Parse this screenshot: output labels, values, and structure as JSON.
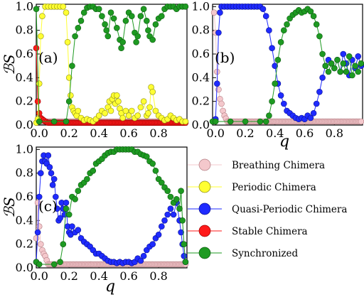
{
  "chart_data": [
    {
      "panel_label": "(a)",
      "type": "line",
      "xlabel": "",
      "ylabel": "ℬS",
      "xlim": [
        -0.02,
        0.99
      ],
      "ylim": [
        0,
        1.02
      ],
      "xticks": [
        "0.0",
        "0.2",
        "0.4",
        "0.6",
        "0.8"
      ],
      "yticks": [
        "0.0",
        "0.2",
        "0.4",
        "0.6",
        "0.8",
        "1.0"
      ],
      "series": [
        {
          "name": "Breathing Chimera",
          "x": [
            0.0,
            0.5,
            0.98
          ],
          "y": [
            0.03,
            0.03,
            0.03
          ]
        },
        {
          "name": "Periodic Chimera",
          "x": [
            -0.02,
            -0.01,
            0.0,
            0.01,
            0.02,
            0.04,
            0.06,
            0.08,
            0.1,
            0.12,
            0.14,
            0.16,
            0.18,
            0.19,
            0.2,
            0.21,
            0.22,
            0.23,
            0.24,
            0.25,
            0.26,
            0.28,
            0.3,
            0.32,
            0.34,
            0.36,
            0.38,
            0.4,
            0.42,
            0.44,
            0.46,
            0.47,
            0.48,
            0.49,
            0.5,
            0.51,
            0.52,
            0.53,
            0.54,
            0.55,
            0.56,
            0.58,
            0.6,
            0.62,
            0.64,
            0.66,
            0.68,
            0.7,
            0.72,
            0.73,
            0.74,
            0.75,
            0.76,
            0.78,
            0.8,
            0.82,
            0.84,
            0.86,
            0.88,
            0.9,
            0.92,
            0.94,
            0.96,
            0.98
          ],
          "y": [
            0.02,
            0.05,
            0.35,
            0.75,
            0.92,
            1.0,
            1.0,
            1.0,
            1.0,
            1.0,
            1.0,
            1.0,
            0.95,
            0.7,
            0.4,
            0.25,
            0.15,
            0.12,
            0.1,
            0.08,
            0.12,
            0.06,
            0.04,
            0.05,
            0.04,
            0.03,
            0.05,
            0.08,
            0.12,
            0.1,
            0.15,
            0.2,
            0.12,
            0.22,
            0.25,
            0.18,
            0.25,
            0.2,
            0.14,
            0.1,
            0.06,
            0.12,
            0.08,
            0.12,
            0.06,
            0.08,
            0.15,
            0.2,
            0.08,
            0.1,
            0.15,
            0.32,
            0.28,
            0.12,
            0.08,
            0.06,
            0.04,
            0.05,
            0.08,
            0.06,
            0.04,
            0.05,
            0.03,
            0.03
          ]
        },
        {
          "name": "Stable Chimera",
          "x": [
            -0.02,
            -0.01,
            0.0,
            0.01,
            0.02,
            0.03,
            0.04,
            0.06,
            0.08,
            0.1,
            0.2,
            0.3,
            0.4,
            0.5,
            0.6,
            0.7,
            0.8,
            0.9,
            0.98
          ],
          "y": [
            0.65,
            0.2,
            0.1,
            0.06,
            0.05,
            0.04,
            0.03,
            0.02,
            0.02,
            0.02,
            0.02,
            0.02,
            0.02,
            0.02,
            0.02,
            0.02,
            0.02,
            0.02,
            0.02
          ]
        },
        {
          "name": "Synchronized",
          "x": [
            -0.02,
            0.0,
            0.1,
            0.18,
            0.2,
            0.22,
            0.24,
            0.26,
            0.28,
            0.3,
            0.32,
            0.34,
            0.36,
            0.38,
            0.4,
            0.42,
            0.44,
            0.45,
            0.46,
            0.48,
            0.5,
            0.52,
            0.54,
            0.55,
            0.56,
            0.58,
            0.6,
            0.62,
            0.64,
            0.65,
            0.66,
            0.68,
            0.7,
            0.72,
            0.73,
            0.74,
            0.76,
            0.78,
            0.8,
            0.82,
            0.84,
            0.86,
            0.88,
            0.9,
            0.92,
            0.94,
            0.96,
            0.98
          ],
          "y": [
            0.98,
            0.03,
            0.03,
            0.03,
            0.2,
            0.5,
            0.75,
            0.82,
            0.88,
            0.95,
            0.99,
            1.0,
            1.0,
            0.98,
            0.98,
            0.92,
            0.85,
            0.8,
            0.75,
            0.95,
            0.9,
            0.82,
            0.72,
            0.65,
            0.7,
            0.88,
            0.95,
            0.92,
            0.78,
            0.7,
            0.75,
            0.92,
            0.98,
            0.88,
            0.8,
            0.75,
            0.72,
            0.85,
            0.9,
            0.92,
            0.98,
            1.0,
            1.0,
            1.0,
            0.98,
            1.0,
            1.0,
            1.0
          ]
        }
      ]
    },
    {
      "panel_label": "(b)",
      "type": "line",
      "xlabel": "q",
      "ylabel": "",
      "xlim": [
        -0.02,
        0.99
      ],
      "ylim": [
        0,
        1.02
      ],
      "xticks": [
        "0.0",
        "0.2",
        "0.4",
        "0.6",
        "0.8"
      ],
      "yticks": [
        "0.0",
        "0.2",
        "0.4",
        "0.6",
        "0.8",
        "1.0"
      ],
      "series": [
        {
          "name": "Breathing Chimera",
          "x": [
            -0.01,
            0.0,
            0.01,
            0.02,
            0.03,
            0.04,
            0.05,
            0.06,
            0.08,
            0.1,
            0.2,
            0.3,
            0.35,
            0.4,
            0.45,
            0.5,
            0.55,
            0.6,
            0.65,
            0.7,
            0.75,
            0.8,
            0.85,
            0.9,
            0.95,
            0.98
          ],
          "y": [
            0.95,
            0.78,
            0.45,
            0.3,
            0.22,
            0.18,
            0.12,
            0.08,
            0.03,
            0.03,
            0.03,
            0.03,
            0.03,
            0.03,
            0.03,
            0.03,
            0.03,
            0.03,
            0.03,
            0.03,
            0.03,
            0.03,
            0.03,
            0.03,
            0.03,
            0.03
          ]
        },
        {
          "name": "Quasi-Periodic Chimera",
          "x": [
            0.0,
            0.01,
            0.02,
            0.03,
            0.04,
            0.06,
            0.08,
            0.1,
            0.12,
            0.14,
            0.16,
            0.18,
            0.2,
            0.22,
            0.24,
            0.26,
            0.28,
            0.3,
            0.32,
            0.34,
            0.36,
            0.38,
            0.4,
            0.42,
            0.44,
            0.46,
            0.48,
            0.5,
            0.52,
            0.54,
            0.56,
            0.58,
            0.6,
            0.62,
            0.64,
            0.66,
            0.68,
            0.7,
            0.72,
            0.74,
            0.76,
            0.78,
            0.8,
            0.82,
            0.84,
            0.86,
            0.88,
            0.9,
            0.92,
            0.94,
            0.96,
            0.98
          ],
          "y": [
            0.05,
            0.35,
            0.78,
            0.95,
            1.0,
            1.0,
            1.0,
            1.0,
            1.0,
            1.0,
            1.0,
            1.0,
            1.0,
            1.0,
            1.0,
            1.0,
            1.0,
            1.0,
            0.98,
            0.92,
            0.8,
            0.65,
            0.5,
            0.35,
            0.25,
            0.18,
            0.12,
            0.1,
            0.08,
            0.06,
            0.05,
            0.06,
            0.05,
            0.08,
            0.06,
            0.1,
            0.18,
            0.28,
            0.4,
            0.5,
            0.55,
            0.52,
            0.48,
            0.55,
            0.45,
            0.6,
            0.52,
            0.42,
            0.55,
            0.48,
            0.58,
            0.5
          ]
        },
        {
          "name": "Synchronized",
          "x": [
            -0.02,
            0.0,
            0.1,
            0.2,
            0.3,
            0.34,
            0.36,
            0.38,
            0.4,
            0.42,
            0.44,
            0.46,
            0.48,
            0.5,
            0.52,
            0.54,
            0.56,
            0.58,
            0.6,
            0.62,
            0.64,
            0.66,
            0.68,
            0.7,
            0.72,
            0.74,
            0.76,
            0.78,
            0.8,
            0.82,
            0.84,
            0.86,
            0.88,
            0.9,
            0.92,
            0.94,
            0.96,
            0.98
          ],
          "y": [
            0.03,
            0.03,
            0.03,
            0.03,
            0.03,
            0.03,
            0.08,
            0.2,
            0.35,
            0.55,
            0.7,
            0.8,
            0.85,
            0.9,
            0.93,
            0.95,
            0.97,
            0.95,
            0.96,
            0.98,
            0.96,
            0.92,
            0.85,
            0.75,
            0.6,
            0.5,
            0.45,
            0.52,
            0.48,
            0.55,
            0.45,
            0.52,
            0.45,
            0.58,
            0.42,
            0.5,
            0.45,
            0.52
          ]
        }
      ]
    },
    {
      "panel_label": "(c)",
      "type": "line",
      "xlabel": "q",
      "ylabel": "ℬS",
      "xlim": [
        -0.02,
        0.99
      ],
      "ylim": [
        0,
        1.02
      ],
      "xticks": [
        "0.0",
        "0.2",
        "0.4",
        "0.6",
        "0.8"
      ],
      "yticks": [
        "0.0",
        "0.2",
        "0.4",
        "0.6",
        "0.8",
        "1.0"
      ],
      "series": [
        {
          "name": "Breathing Chimera",
          "x": [
            -0.02,
            -0.01,
            0.0,
            0.01,
            0.02,
            0.03,
            0.04,
            0.06,
            0.1,
            0.2,
            0.3,
            0.4,
            0.5,
            0.6,
            0.7,
            0.8,
            0.9,
            0.98
          ],
          "y": [
            0.25,
            0.55,
            0.35,
            0.2,
            0.15,
            0.12,
            0.1,
            0.03,
            0.03,
            0.03,
            0.03,
            0.03,
            0.03,
            0.03,
            0.03,
            0.03,
            0.03,
            0.03
          ]
        },
        {
          "name": "Quasi-Periodic Chimera",
          "x": [
            -0.02,
            -0.01,
            0.0,
            0.01,
            0.02,
            0.03,
            0.04,
            0.05,
            0.06,
            0.07,
            0.08,
            0.09,
            0.1,
            0.11,
            0.12,
            0.13,
            0.14,
            0.15,
            0.16,
            0.17,
            0.18,
            0.19,
            0.2,
            0.21,
            0.22,
            0.24,
            0.26,
            0.28,
            0.3,
            0.32,
            0.34,
            0.36,
            0.38,
            0.4,
            0.42,
            0.44,
            0.46,
            0.48,
            0.5,
            0.52,
            0.54,
            0.56,
            0.58,
            0.6,
            0.62,
            0.64,
            0.66,
            0.68,
            0.7,
            0.72,
            0.74,
            0.76,
            0.78,
            0.8,
            0.82,
            0.84,
            0.86,
            0.88,
            0.9,
            0.92,
            0.94,
            0.95,
            0.96,
            0.97,
            0.98
          ],
          "y": [
            0.05,
            0.3,
            0.6,
            0.8,
            0.9,
            0.95,
            0.9,
            0.88,
            0.95,
            0.85,
            0.8,
            0.7,
            0.75,
            0.6,
            0.5,
            0.4,
            0.42,
            0.55,
            0.5,
            0.45,
            0.55,
            0.35,
            0.3,
            0.28,
            0.35,
            0.3,
            0.32,
            0.25,
            0.22,
            0.2,
            0.18,
            0.15,
            0.12,
            0.12,
            0.1,
            0.08,
            0.06,
            0.05,
            0.05,
            0.04,
            0.05,
            0.04,
            0.05,
            0.05,
            0.04,
            0.05,
            0.08,
            0.06,
            0.1,
            0.15,
            0.18,
            0.2,
            0.25,
            0.28,
            0.35,
            0.4,
            0.45,
            0.5,
            0.45,
            0.55,
            0.4,
            0.3,
            0.2,
            0.1,
            0.05
          ]
        },
        {
          "name": "Synchronized",
          "x": [
            -0.02,
            0.0,
            0.1,
            0.14,
            0.16,
            0.18,
            0.2,
            0.22,
            0.24,
            0.26,
            0.28,
            0.3,
            0.32,
            0.34,
            0.36,
            0.38,
            0.4,
            0.42,
            0.44,
            0.46,
            0.48,
            0.5,
            0.52,
            0.54,
            0.56,
            0.58,
            0.6,
            0.62,
            0.64,
            0.66,
            0.68,
            0.7,
            0.72,
            0.74,
            0.76,
            0.78,
            0.8,
            0.82,
            0.84,
            0.86,
            0.88,
            0.9,
            0.92,
            0.94,
            0.95,
            0.96,
            0.97,
            0.98
          ],
          "y": [
            0.05,
            0.03,
            0.03,
            0.05,
            0.2,
            0.5,
            0.45,
            0.6,
            0.58,
            0.65,
            0.7,
            0.72,
            0.75,
            0.8,
            0.82,
            0.88,
            0.9,
            0.92,
            0.95,
            0.97,
            0.98,
            0.98,
            1.0,
            1.0,
            1.0,
            1.0,
            1.0,
            1.0,
            0.98,
            0.98,
            0.96,
            0.95,
            0.94,
            0.9,
            0.88,
            0.82,
            0.75,
            0.72,
            0.68,
            0.65,
            0.6,
            0.55,
            0.58,
            0.5,
            0.65,
            0.4,
            0.2,
            0.05
          ]
        }
      ]
    }
  ],
  "legend": {
    "entries": [
      {
        "label": "Breathing Chimera",
        "face": "#f4c8cc",
        "edge": "#b07a80"
      },
      {
        "label": "Periodic Chimera",
        "face": "#ffff33",
        "edge": "#8a8a10"
      },
      {
        "label": "Quasi-Periodic Chimera",
        "face": "#1f2bff",
        "edge": "#0a1090"
      },
      {
        "label": "Stable Chimera",
        "face": "#ff1a1a",
        "edge": "#9a0000"
      },
      {
        "label": "Synchronized",
        "face": "#1e9a22",
        "edge": "#0d5a10"
      }
    ]
  },
  "colors": {
    "Breathing Chimera": "#f4c8cc",
    "Periodic Chimera": "#ffff33",
    "Quasi-Periodic Chimera": "#1f2bff",
    "Stable Chimera": "#ff1a1a",
    "Synchronized": "#1e9a22"
  }
}
